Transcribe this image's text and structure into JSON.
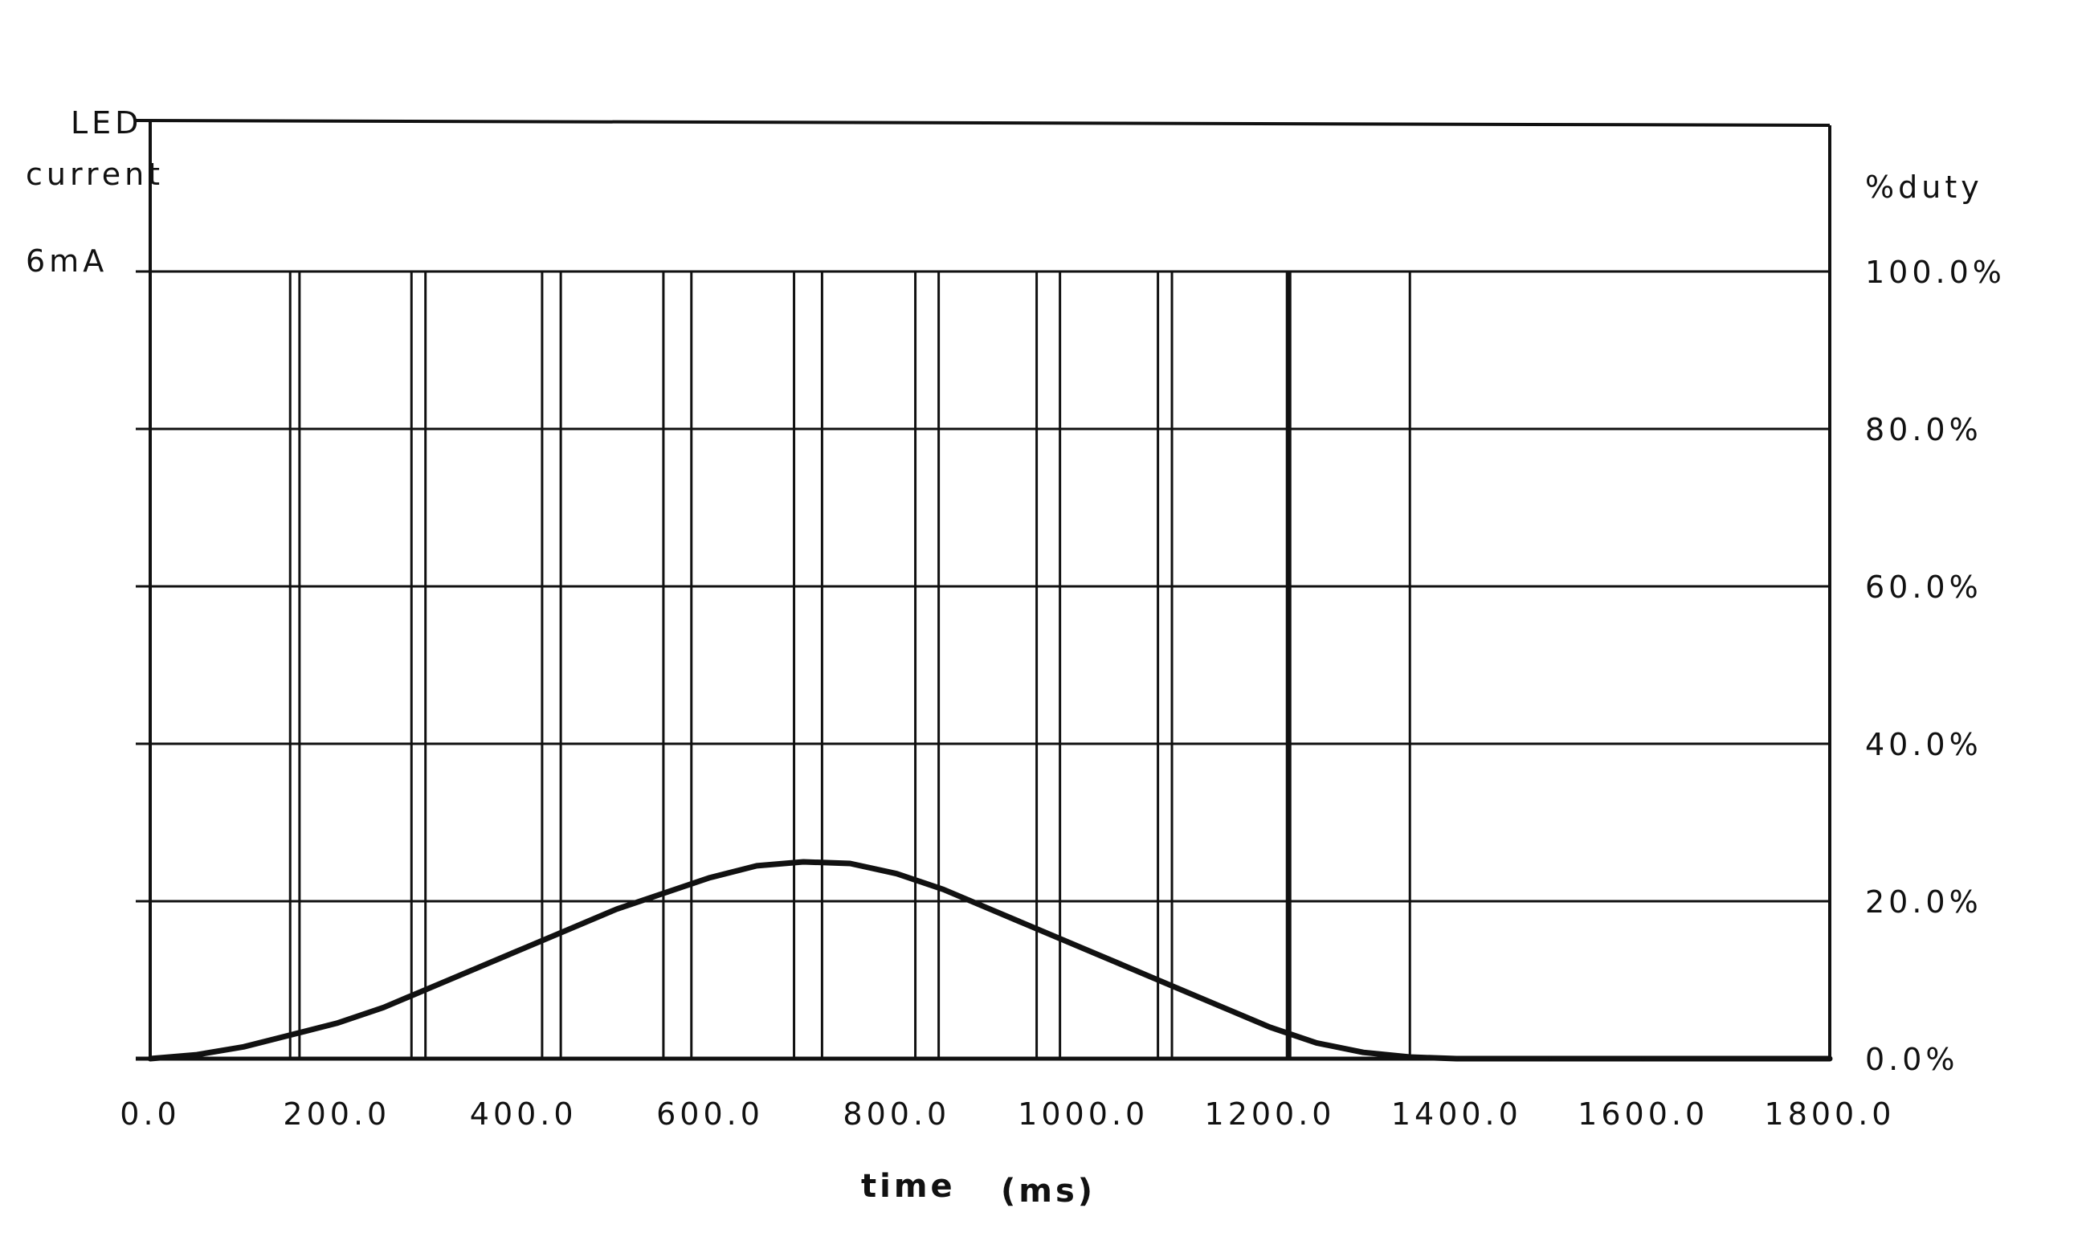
{
  "chart_data": {
    "type": "line",
    "left_axis": {
      "title_line1": "LED",
      "title_line2": "current",
      "max_label": "6mA",
      "range": [
        0,
        6
      ]
    },
    "right_axis": {
      "title": "%duty",
      "ticks": [
        "0.0%",
        "20.0%",
        "40.0%",
        "60.0%",
        "80.0%",
        "100.0%"
      ],
      "tick_values": [
        0,
        20,
        40,
        60,
        80,
        100
      ],
      "range": [
        0,
        100
      ]
    },
    "x_axis": {
      "label": "time",
      "unit": "(ms)",
      "range": [
        0,
        1800
      ],
      "ticks": [
        "0.0",
        "200.0",
        "400.0",
        "600.0",
        "800.0",
        "1000.0",
        "1200.0",
        "1400.0",
        "1600.0",
        "1800.0"
      ],
      "tick_values": [
        0,
        200,
        400,
        600,
        800,
        1000,
        1200,
        1400,
        1600,
        1800
      ]
    },
    "grid": true,
    "series": [
      {
        "type": "line",
        "x": [
          0,
          50,
          100,
          150,
          200,
          250,
          300,
          350,
          400,
          450,
          500,
          550,
          600,
          650,
          700,
          750,
          800,
          850,
          900,
          950,
          1000,
          1050,
          1100,
          1150,
          1200,
          1250,
          1300,
          1350,
          1400,
          1500,
          1600,
          1800
        ],
        "y": [
          0,
          0.5,
          1.5,
          3,
          4.5,
          6.5,
          9,
          11.5,
          14,
          16.5,
          19,
          21,
          23,
          24.5,
          25,
          24.8,
          23.5,
          21.5,
          19,
          16.5,
          14,
          11.5,
          9,
          6.5,
          4,
          2,
          0.8,
          0.2,
          0,
          0,
          0,
          0
        ]
      }
    ],
    "pulse_marks": {
      "x": [
        150,
        160,
        280,
        295,
        420,
        440,
        550,
        580,
        690,
        720,
        820,
        845,
        950,
        975,
        1080,
        1095,
        1220,
        1350
      ],
      "y_top": 100
    }
  }
}
